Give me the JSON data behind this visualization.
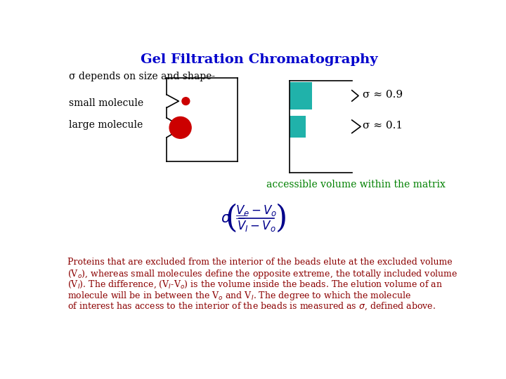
{
  "title": "Gel Filtration Chromatography",
  "title_color": "#0000CC",
  "title_fontsize": 14,
  "bg_color": "#ffffff",
  "sigma_label": "σ depends on size and shape-",
  "small_molecule_label": "small molecule",
  "large_molecule_label": "large molecule",
  "sigma_09": "σ ≈ 0.9",
  "sigma_01": "σ ≈ 0.1",
  "accessible_label": "accessible volume within the matrix",
  "accessible_color": "#008000",
  "formula_color": "#00008B",
  "body_text_color": "#8B0000",
  "teal_color": "#20B2AA",
  "red_color": "#CC0000",
  "black_color": "#000000",
  "label_fontsize": 10,
  "body_fontsize": 9,
  "sigma_fontsize": 11,
  "accessible_fontsize": 10
}
